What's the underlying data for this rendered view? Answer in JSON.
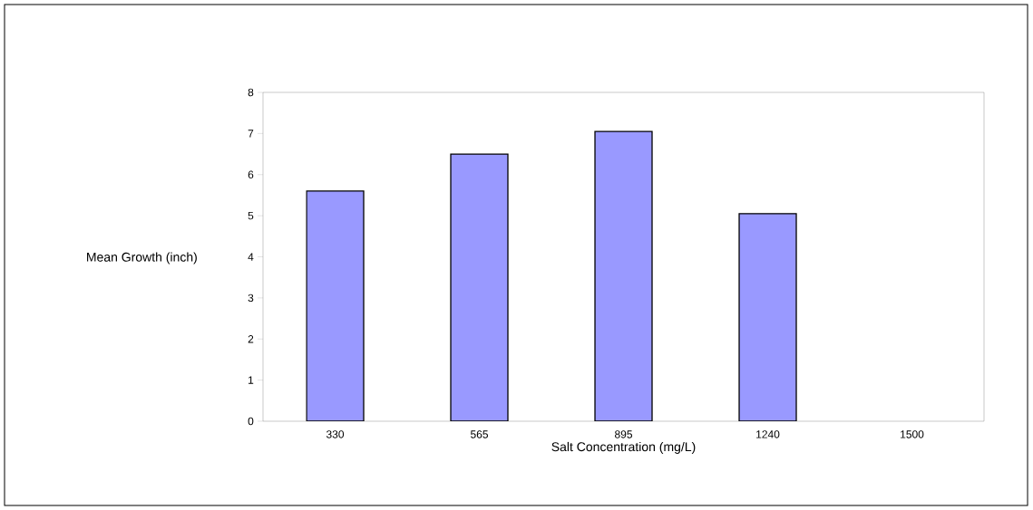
{
  "chart_data": {
    "type": "bar",
    "xlabel": "Salt Concentration (mg/L)",
    "ylabel": "Mean Growth (inch)",
    "categories": [
      "330",
      "565",
      "895",
      "1240",
      "1500"
    ],
    "values": [
      5.6,
      6.5,
      7.05,
      5.05,
      null
    ],
    "color": "#9999ff",
    "ylim": [
      0,
      8
    ],
    "yticks": [
      0,
      1,
      2,
      3,
      4,
      5,
      6,
      7,
      8
    ],
    "grid": false
  }
}
